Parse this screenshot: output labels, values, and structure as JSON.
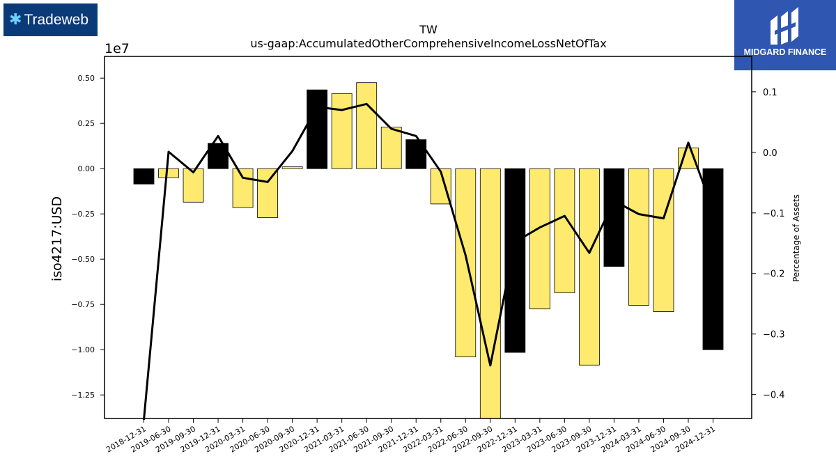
{
  "logos": {
    "left": {
      "text": "Tradeweb"
    },
    "right": {
      "text": "MIDGARD FINANCE"
    }
  },
  "colors": {
    "bar_positive_change": "#000000",
    "bar_default": "#fdea6e",
    "line": "#000000"
  },
  "chart_data": {
    "type": "bar",
    "title": "TW",
    "subtitle": "us-gaap:AccumulatedOtherComprehensiveIncomeLossNetOfTax",
    "ylabel": "iso4217:USD",
    "y2label": "Percentage of Assets",
    "y_offset_label": "1e7",
    "ylim": [
      -1.38,
      0.62
    ],
    "y2lim": [
      -0.4395,
      0.1585
    ],
    "y_ticks": [
      "0.50",
      "0.25",
      "0.00",
      "−0.25",
      "−0.50",
      "−0.75",
      "−1.00",
      "−1.25"
    ],
    "y_tick_values": [
      0.5,
      0.25,
      0,
      -0.25,
      -0.5,
      -0.75,
      -1.0,
      -1.25
    ],
    "y2_ticks": [
      "0.1",
      "0.0",
      "−0.1",
      "−0.2",
      "−0.3",
      "−0.4"
    ],
    "y2_tick_values": [
      0.1,
      0.0,
      -0.1,
      -0.2,
      -0.3,
      -0.4
    ],
    "categories": [
      "2018-12-31",
      "2019-06-30",
      "2019-09-30",
      "2019-12-31",
      "2020-03-31",
      "2020-06-30",
      "2020-09-30",
      "2020-12-31",
      "2021-03-31",
      "2021-06-30",
      "2021-09-30",
      "2021-12-31",
      "2022-03-31",
      "2022-06-30",
      "2022-09-30",
      "2022-12-31",
      "2023-03-31",
      "2023-06-30",
      "2023-09-30",
      "2023-12-31",
      "2024-03-31",
      "2024-06-30",
      "2024-09-30",
      "2024-12-31"
    ],
    "series": [
      {
        "values": [
          -0.085,
          -0.05,
          -0.185,
          0.14,
          -0.215,
          -0.27,
          0.01,
          0.435,
          0.415,
          0.475,
          0.23,
          0.16,
          -0.195,
          -1.04,
          -1.39,
          -1.015,
          -0.775,
          -0.685,
          -1.085,
          -0.54,
          -0.755,
          -0.79,
          0.115,
          -1.0
        ],
        "colors": [
          "#000000",
          "#fdea6e",
          "#fdea6e",
          "#000000",
          "#fdea6e",
          "#fdea6e",
          "#fdea6e",
          "#000000",
          "#fdea6e",
          "#fdea6e",
          "#fdea6e",
          "#000000",
          "#fdea6e",
          "#fdea6e",
          "#fdea6e",
          "#000000",
          "#fdea6e",
          "#fdea6e",
          "#fdea6e",
          "#000000",
          "#fdea6e",
          "#fdea6e",
          "#fdea6e",
          "#000000"
        ]
      },
      {
        "axis": "right",
        "type": "line",
        "values": [
          -0.46,
          0.001,
          -0.033,
          0.027,
          -0.042,
          -0.049,
          0.002,
          0.075,
          0.07,
          0.08,
          0.039,
          0.027,
          -0.032,
          -0.17,
          -0.352,
          -0.148,
          -0.124,
          -0.105,
          -0.166,
          -0.08,
          -0.102,
          -0.109,
          0.016,
          -0.095
        ]
      }
    ],
    "grid": false,
    "legend": "none"
  }
}
